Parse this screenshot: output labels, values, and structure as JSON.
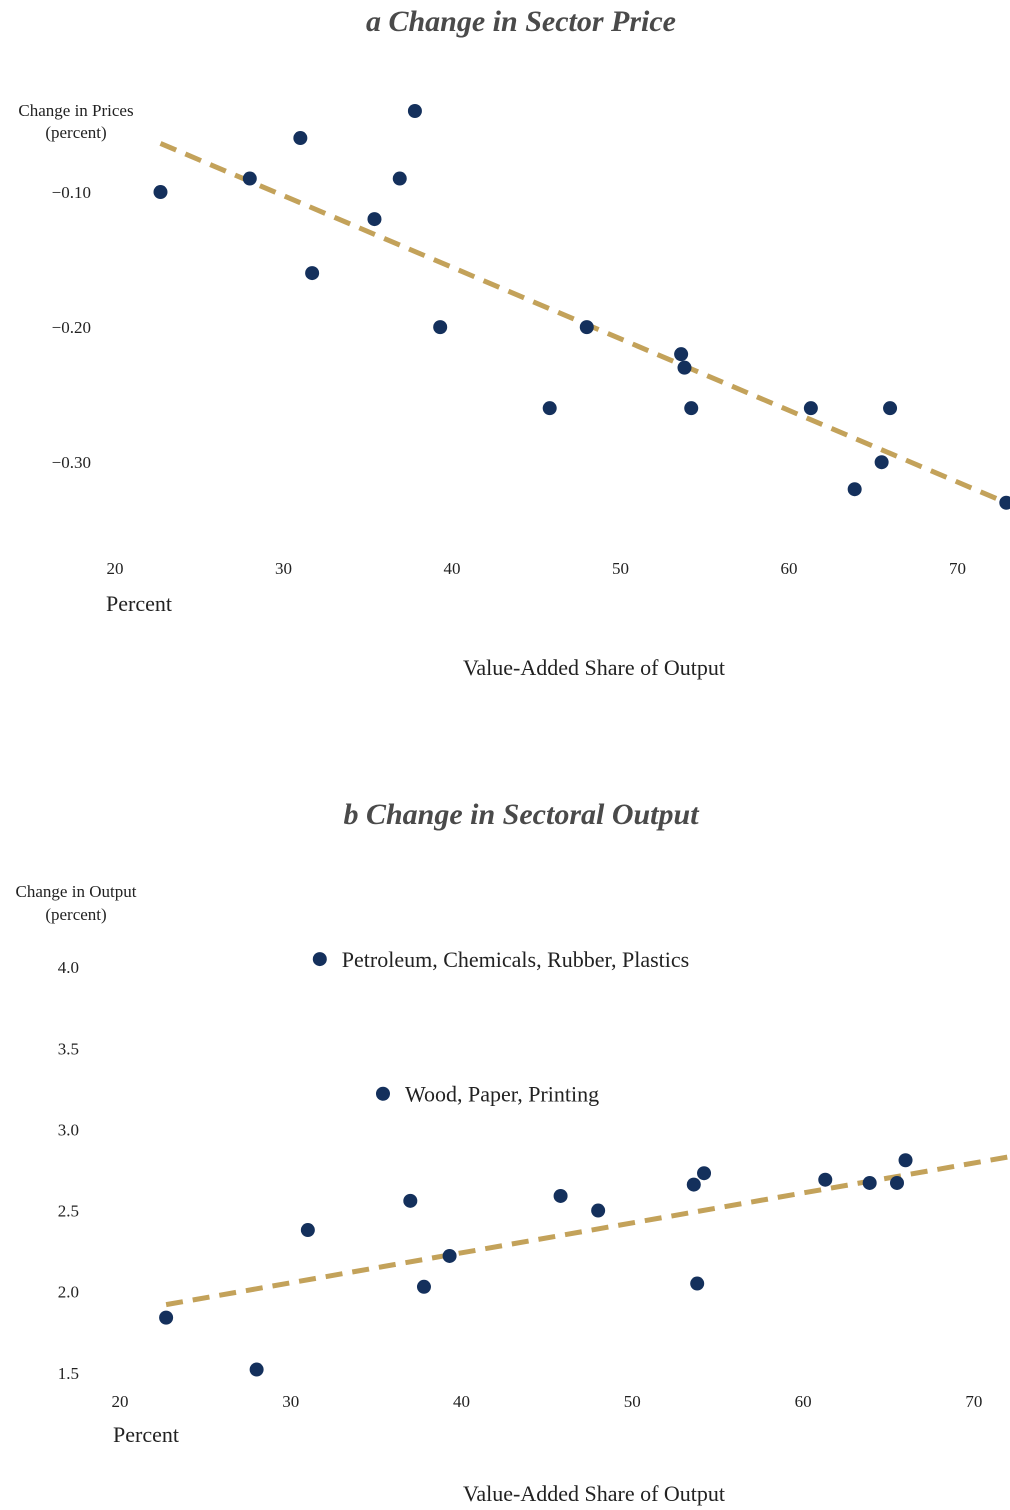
{
  "colors": {
    "point": "#14305c",
    "trend": "#c3a25a",
    "title": "#4a4a4a"
  },
  "chart_data": [
    {
      "type": "scatter",
      "title": "a Change in Sector Price",
      "ylabel": [
        "Change in Prices",
        "(percent)"
      ],
      "xlabel": "Value-Added Share of Output",
      "xunit": "Percent",
      "xticks": [
        20,
        30,
        40,
        50,
        60,
        70
      ],
      "yticks": [
        -0.1,
        -0.2,
        -0.3
      ],
      "ytick_labels": [
        "−0.10",
        "−0.20",
        "−0.30"
      ],
      "xlim": [
        20,
        73
      ],
      "ylim": [
        -0.345,
        -0.04
      ],
      "points": [
        {
          "x": 22.7,
          "y": -0.1
        },
        {
          "x": 28.0,
          "y": -0.09
        },
        {
          "x": 31.0,
          "y": -0.06
        },
        {
          "x": 31.7,
          "y": -0.16
        },
        {
          "x": 35.4,
          "y": -0.12
        },
        {
          "x": 36.9,
          "y": -0.09
        },
        {
          "x": 37.8,
          "y": -0.04
        },
        {
          "x": 39.3,
          "y": -0.2
        },
        {
          "x": 45.8,
          "y": -0.26
        },
        {
          "x": 48.0,
          "y": -0.2
        },
        {
          "x": 53.6,
          "y": -0.22
        },
        {
          "x": 53.8,
          "y": -0.23
        },
        {
          "x": 54.2,
          "y": -0.26
        },
        {
          "x": 61.3,
          "y": -0.26
        },
        {
          "x": 63.9,
          "y": -0.32
        },
        {
          "x": 65.5,
          "y": -0.3
        },
        {
          "x": 66.0,
          "y": -0.26
        },
        {
          "x": 72.9,
          "y": -0.33
        }
      ],
      "trend": [
        {
          "x": 22.7,
          "y": -0.064
        },
        {
          "x": 72.9,
          "y": -0.33
        }
      ],
      "annotations": []
    },
    {
      "type": "scatter",
      "title": "b Change in Sectoral Output",
      "ylabel": [
        "Change in Output",
        "(percent)"
      ],
      "xlabel": "Value-Added Share of Output",
      "xunit": "Percent",
      "xticks": [
        20,
        30,
        40,
        50,
        60,
        70
      ],
      "yticks": [
        1.5,
        2.0,
        2.5,
        3.0,
        3.5,
        4.0
      ],
      "ytick_labels": [
        "1.5",
        "2.0",
        "2.5",
        "3.0",
        "3.5",
        "4.0"
      ],
      "xlim": [
        20,
        72
      ],
      "ylim": [
        1.4,
        4.18
      ],
      "points": [
        {
          "x": 22.7,
          "y": 1.84
        },
        {
          "x": 28.0,
          "y": 1.52
        },
        {
          "x": 31.0,
          "y": 2.38
        },
        {
          "x": 31.7,
          "y": 4.05
        },
        {
          "x": 35.4,
          "y": 3.22
        },
        {
          "x": 37.0,
          "y": 2.56
        },
        {
          "x": 37.8,
          "y": 2.03
        },
        {
          "x": 39.3,
          "y": 2.22
        },
        {
          "x": 45.8,
          "y": 2.59
        },
        {
          "x": 48.0,
          "y": 2.5
        },
        {
          "x": 53.6,
          "y": 2.66
        },
        {
          "x": 53.8,
          "y": 2.05
        },
        {
          "x": 54.2,
          "y": 2.73
        },
        {
          "x": 61.3,
          "y": 2.69
        },
        {
          "x": 63.9,
          "y": 2.67
        },
        {
          "x": 65.5,
          "y": 2.67
        },
        {
          "x": 66.0,
          "y": 2.81
        }
      ],
      "trend": [
        {
          "x": 22.7,
          "y": 1.92
        },
        {
          "x": 72,
          "y": 2.83
        }
      ],
      "annotations": [
        {
          "x": 31.7,
          "y": 4.05,
          "text": "Petroleum, Chemicals, Rubber, Plastics"
        },
        {
          "x": 35.4,
          "y": 3.22,
          "text": "Wood, Paper, Printing"
        }
      ]
    }
  ]
}
